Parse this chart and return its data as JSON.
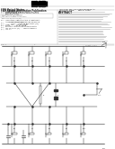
{
  "background_color": "#ffffff",
  "text_color": "#222222",
  "gray": "#777777",
  "light_gray": "#aaaaaa",
  "circuit_color": "#333333",
  "barcode_color": "#000000"
}
